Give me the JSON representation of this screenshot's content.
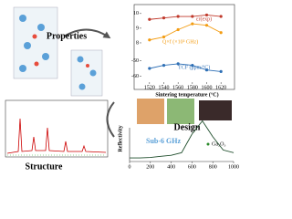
{
  "labels": {
    "properties": "Properties",
    "design": "Design",
    "structure": "Structure",
    "band": "Sub-6 GHz",
    "material": "Ga₂O₃"
  },
  "properties_chart": {
    "type": "line",
    "x_label": "Sintering temperature (°C)",
    "x": [
      1520,
      1540,
      1560,
      1580,
      1600,
      1620
    ],
    "xlim": [
      1510,
      1630
    ],
    "xticks": [
      1520,
      1540,
      1560,
      1580,
      1600,
      1620
    ],
    "panels": [
      {
        "ylim": [
          7.5,
          10.3
        ],
        "yticks": [
          10,
          9,
          8
        ],
        "series": [
          {
            "name": "εr(exp)",
            "color": "#c0392b",
            "values": [
              9.6,
              9.7,
              9.8,
              9.8,
              9.9,
              9.8
            ]
          },
          {
            "name": "Q×f (×10³ GHz)",
            "color": "#f39c12",
            "values": [
              8.2,
              8.4,
              8.9,
              9.3,
              9.2,
              8.7
            ]
          }
        ]
      },
      {
        "ylim": [
          -65,
          -45
        ],
        "yticks": [
          -50,
          -60
        ],
        "series": [
          {
            "name": "TCF (ppm/°C)",
            "color": "#2e6fb5",
            "values": [
              -55,
              -53,
              -52,
              -53,
              -56,
              -57
            ]
          }
        ]
      }
    ]
  },
  "reflectivity_chart": {
    "type": "line",
    "y_label": "Reflectivity",
    "x": [
      0,
      100,
      200,
      300,
      400,
      500,
      600,
      700,
      800,
      900,
      1000
    ],
    "xlim": [
      0,
      1000
    ],
    "xticks": [
      0,
      200,
      400,
      600,
      800,
      1000
    ],
    "ylim": [
      0,
      1
    ],
    "series": [
      {
        "color": "#1e4d2b",
        "values": [
          0.05,
          0.05,
          0.06,
          0.08,
          0.1,
          0.15,
          0.5,
          0.75,
          0.45,
          0.2,
          0.15
        ]
      }
    ]
  }
}
